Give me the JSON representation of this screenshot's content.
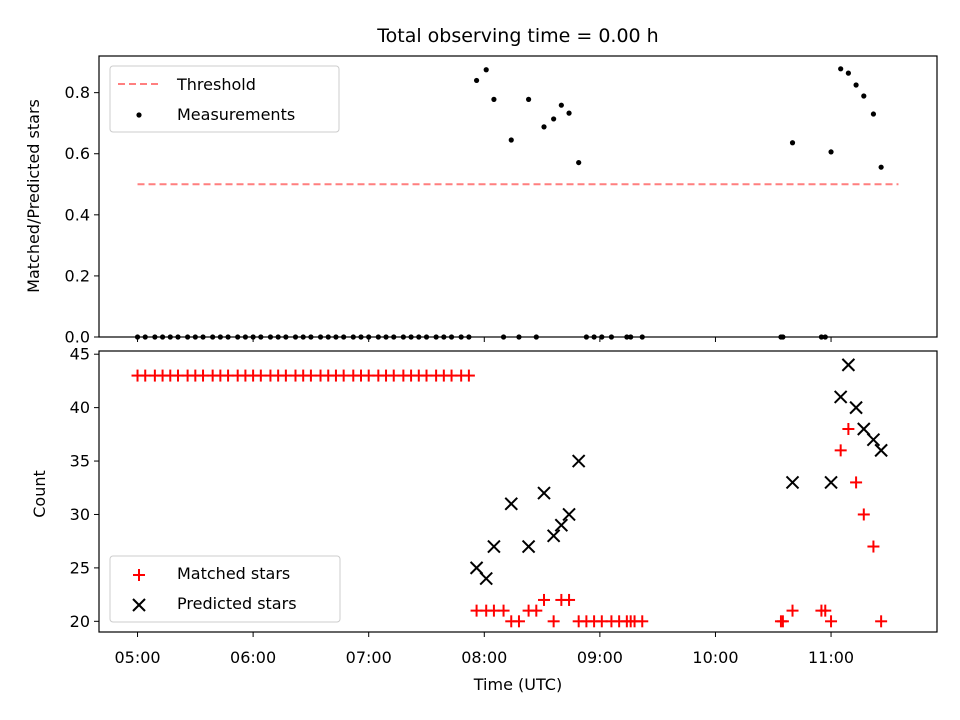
{
  "chart_data": [
    {
      "type": "scatter",
      "title": "Total observing time = 0.00 h",
      "xlabel": "",
      "ylabel": "Matched/Predicted stars",
      "xlim": [
        "04:40",
        "11:55"
      ],
      "ylim": [
        0,
        0.92
      ],
      "yticks": [
        "0.0",
        "0.2",
        "0.4",
        "0.6",
        "0.8"
      ],
      "grid": false,
      "legend_position": "top-left",
      "threshold": {
        "name": "Threshold",
        "value": 0.5,
        "x_range": [
          "05:00",
          "11:35"
        ],
        "color": "#ff7f7f",
        "style": "dashed"
      },
      "series": [
        {
          "name": "Measurements",
          "color": "#000000",
          "marker": "dot",
          "points": [
            [
              "05:00",
              0
            ],
            [
              "05:04",
              0
            ],
            [
              "05:09",
              0
            ],
            [
              "05:13",
              0
            ],
            [
              "05:17",
              0
            ],
            [
              "05:21",
              0
            ],
            [
              "05:26",
              0
            ],
            [
              "05:30",
              0
            ],
            [
              "05:34",
              0
            ],
            [
              "05:39",
              0
            ],
            [
              "05:43",
              0
            ],
            [
              "05:47",
              0
            ],
            [
              "05:52",
              0
            ],
            [
              "05:56",
              0
            ],
            [
              "06:00",
              0
            ],
            [
              "06:04",
              0
            ],
            [
              "06:09",
              0
            ],
            [
              "06:13",
              0
            ],
            [
              "06:17",
              0
            ],
            [
              "06:22",
              0
            ],
            [
              "06:26",
              0
            ],
            [
              "06:30",
              0
            ],
            [
              "06:35",
              0
            ],
            [
              "06:39",
              0
            ],
            [
              "06:43",
              0
            ],
            [
              "06:47",
              0
            ],
            [
              "06:52",
              0
            ],
            [
              "06:56",
              0
            ],
            [
              "07:00",
              0
            ],
            [
              "07:05",
              0
            ],
            [
              "07:09",
              0
            ],
            [
              "07:13",
              0
            ],
            [
              "07:18",
              0
            ],
            [
              "07:22",
              0
            ],
            [
              "07:26",
              0
            ],
            [
              "07:30",
              0
            ],
            [
              "07:35",
              0
            ],
            [
              "07:39",
              0
            ],
            [
              "07:43",
              0
            ],
            [
              "07:48",
              0
            ],
            [
              "07:52",
              0
            ],
            [
              "07:56",
              0.84
            ],
            [
              "08:01",
              0.875
            ],
            [
              "08:05",
              0.778
            ],
            [
              "08:10",
              0
            ],
            [
              "08:14",
              0.645
            ],
            [
              "08:18",
              0
            ],
            [
              "08:23",
              0.778
            ],
            [
              "08:27",
              0
            ],
            [
              "08:31",
              0.688
            ],
            [
              "08:36",
              0.714
            ],
            [
              "08:40",
              0.759
            ],
            [
              "08:44",
              0.733
            ],
            [
              "08:49",
              0.571
            ],
            [
              "08:53",
              0
            ],
            [
              "08:57",
              0
            ],
            [
              "09:01",
              0
            ],
            [
              "09:06",
              0
            ],
            [
              "09:14",
              0
            ],
            [
              "09:16",
              0
            ],
            [
              "09:22",
              0
            ],
            [
              "10:34",
              0
            ],
            [
              "10:35",
              0
            ],
            [
              "10:40",
              0.636
            ],
            [
              "10:55",
              0
            ],
            [
              "10:57",
              0
            ],
            [
              "11:00",
              0.606
            ],
            [
              "11:05",
              0.878
            ],
            [
              "11:09",
              0.864
            ],
            [
              "11:13",
              0.825
            ],
            [
              "11:17",
              0.789
            ],
            [
              "11:22",
              0.73
            ],
            [
              "11:26",
              0.556
            ]
          ]
        }
      ]
    },
    {
      "type": "scatter",
      "title": "",
      "xlabel": "Time (UTC)",
      "ylabel": "Count",
      "xlim": [
        "04:40",
        "11:55"
      ],
      "ylim": [
        19,
        45.3
      ],
      "xticks": [
        "05:00",
        "06:00",
        "07:00",
        "08:00",
        "09:00",
        "10:00",
        "11:00"
      ],
      "yticks": [
        "20",
        "25",
        "30",
        "35",
        "40",
        "45"
      ],
      "grid": false,
      "legend_position": "bottom-left",
      "series": [
        {
          "name": "Matched stars",
          "color": "#ff0000",
          "marker": "plus",
          "points": [
            [
              "05:00",
              43
            ],
            [
              "05:04",
              43
            ],
            [
              "05:09",
              43
            ],
            [
              "05:13",
              43
            ],
            [
              "05:17",
              43
            ],
            [
              "05:21",
              43
            ],
            [
              "05:26",
              43
            ],
            [
              "05:30",
              43
            ],
            [
              "05:34",
              43
            ],
            [
              "05:39",
              43
            ],
            [
              "05:43",
              43
            ],
            [
              "05:47",
              43
            ],
            [
              "05:52",
              43
            ],
            [
              "05:56",
              43
            ],
            [
              "06:00",
              43
            ],
            [
              "06:04",
              43
            ],
            [
              "06:09",
              43
            ],
            [
              "06:13",
              43
            ],
            [
              "06:17",
              43
            ],
            [
              "06:22",
              43
            ],
            [
              "06:26",
              43
            ],
            [
              "06:30",
              43
            ],
            [
              "06:35",
              43
            ],
            [
              "06:39",
              43
            ],
            [
              "06:43",
              43
            ],
            [
              "06:47",
              43
            ],
            [
              "06:52",
              43
            ],
            [
              "06:56",
              43
            ],
            [
              "07:00",
              43
            ],
            [
              "07:05",
              43
            ],
            [
              "07:09",
              43
            ],
            [
              "07:13",
              43
            ],
            [
              "07:18",
              43
            ],
            [
              "07:22",
              43
            ],
            [
              "07:26",
              43
            ],
            [
              "07:30",
              43
            ],
            [
              "07:35",
              43
            ],
            [
              "07:39",
              43
            ],
            [
              "07:43",
              43
            ],
            [
              "07:48",
              43
            ],
            [
              "07:52",
              43
            ],
            [
              "07:56",
              21
            ],
            [
              "08:01",
              21
            ],
            [
              "08:05",
              21
            ],
            [
              "08:10",
              21
            ],
            [
              "08:14",
              20
            ],
            [
              "08:18",
              20
            ],
            [
              "08:23",
              21
            ],
            [
              "08:27",
              21
            ],
            [
              "08:31",
              22
            ],
            [
              "08:36",
              20
            ],
            [
              "08:40",
              22
            ],
            [
              "08:44",
              22
            ],
            [
              "08:49",
              20
            ],
            [
              "08:53",
              20
            ],
            [
              "08:57",
              20
            ],
            [
              "09:01",
              20
            ],
            [
              "09:06",
              20
            ],
            [
              "09:10",
              20
            ],
            [
              "09:14",
              20
            ],
            [
              "09:16",
              20
            ],
            [
              "09:18",
              20
            ],
            [
              "09:22",
              20
            ],
            [
              "10:34",
              20
            ],
            [
              "10:35",
              20
            ],
            [
              "10:40",
              21
            ],
            [
              "10:55",
              21
            ],
            [
              "10:57",
              21
            ],
            [
              "11:00",
              20
            ],
            [
              "11:05",
              36
            ],
            [
              "11:09",
              38
            ],
            [
              "11:13",
              33
            ],
            [
              "11:17",
              30
            ],
            [
              "11:22",
              27
            ],
            [
              "11:26",
              20
            ]
          ]
        },
        {
          "name": "Predicted stars",
          "color": "#000000",
          "marker": "x",
          "points": [
            [
              "07:56",
              25
            ],
            [
              "08:01",
              24
            ],
            [
              "08:05",
              27
            ],
            [
              "08:14",
              31
            ],
            [
              "08:23",
              27
            ],
            [
              "08:31",
              32
            ],
            [
              "08:36",
              28
            ],
            [
              "08:40",
              29
            ],
            [
              "08:44",
              30
            ],
            [
              "08:49",
              35
            ],
            [
              "10:40",
              33
            ],
            [
              "11:00",
              33
            ],
            [
              "11:05",
              41
            ],
            [
              "11:09",
              44
            ],
            [
              "11:13",
              40
            ],
            [
              "11:17",
              38
            ],
            [
              "11:22",
              37
            ],
            [
              "11:26",
              36
            ]
          ]
        }
      ]
    }
  ]
}
